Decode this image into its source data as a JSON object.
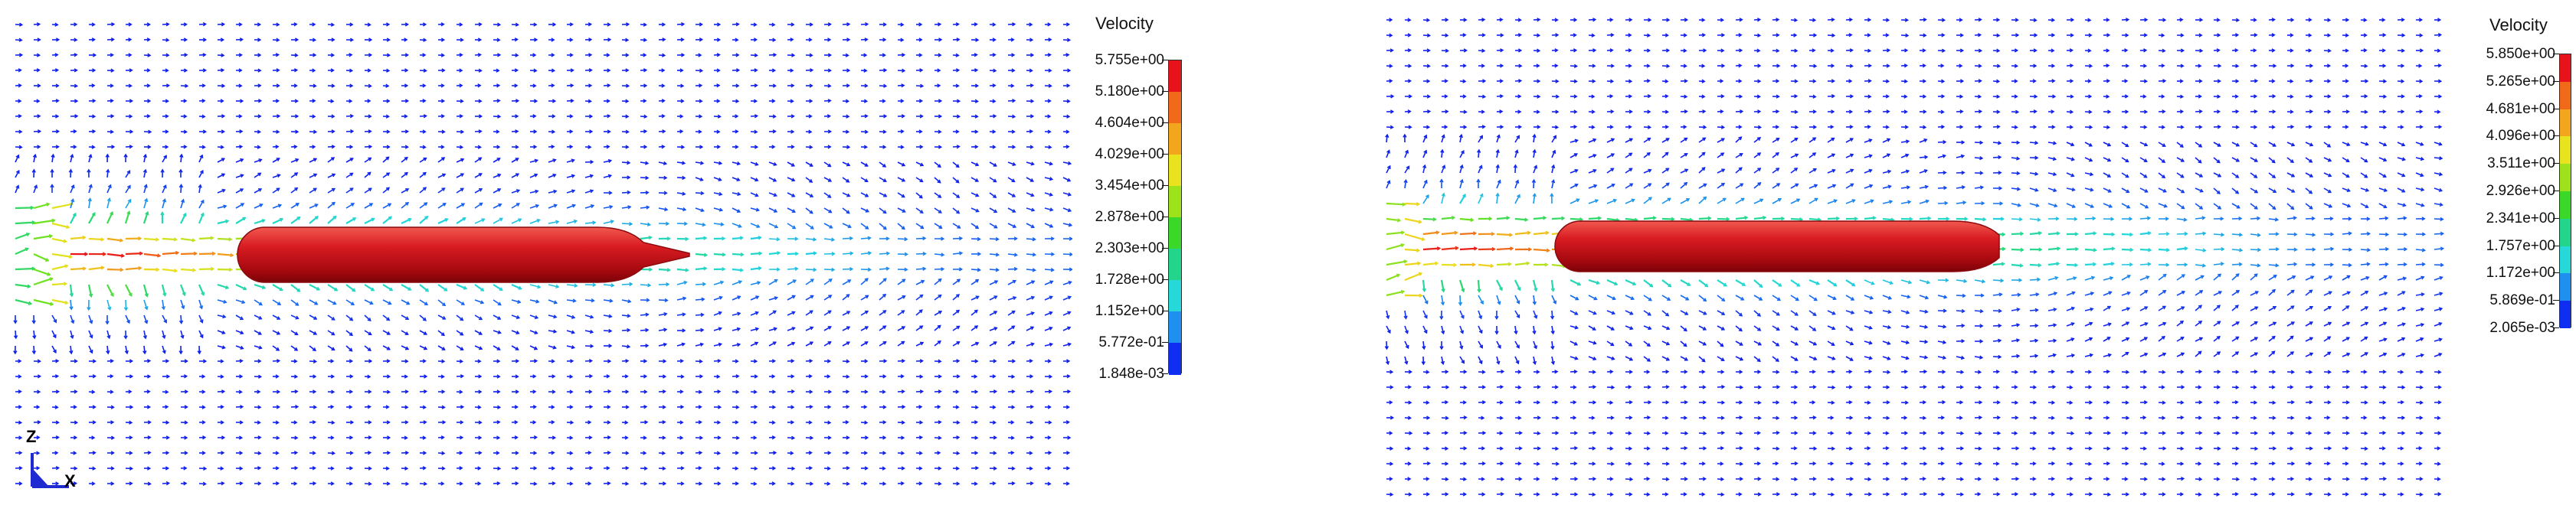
{
  "panels": [
    {
      "id": "left",
      "colorbar": {
        "title": "Velocity",
        "labels": [
          "5.755e+00",
          "5.180e+00",
          "4.604e+00",
          "4.029e+00",
          "3.454e+00",
          "2.878e+00",
          "2.303e+00",
          "1.728e+00",
          "1.152e+00",
          "5.772e-01",
          "1.848e-03"
        ]
      }
    },
    {
      "id": "right",
      "colorbar": {
        "title": "Velocity",
        "labels": [
          "5.850e+00",
          "5.265e+00",
          "4.681e+00",
          "4.096e+00",
          "3.511e+00",
          "2.926e+00",
          "2.341e+00",
          "1.757e+00",
          "1.172e+00",
          "5.869e-01",
          "2.065e-03"
        ]
      }
    }
  ],
  "colorbar_colors": [
    "#e8121a",
    "#f06a1a",
    "#f2a61e",
    "#e9e21f",
    "#9ee21c",
    "#3bd82a",
    "#23d58a",
    "#27d8d8",
    "#1f8ff0",
    "#0f2ef2"
  ],
  "axis_triad": {
    "z_label": "Z",
    "x_label": "X"
  }
}
